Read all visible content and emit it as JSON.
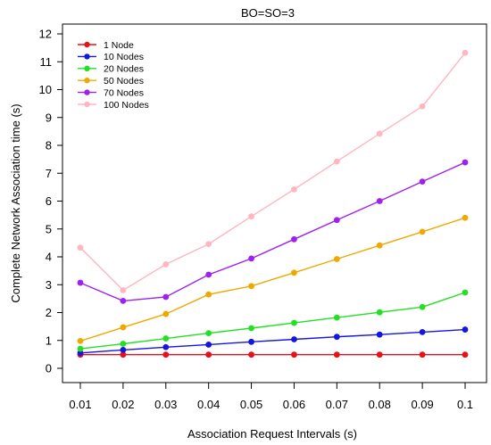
{
  "chart_data": {
    "type": "line",
    "title": "BO=SO=3",
    "xlabel": "Association Request Intervals (s)",
    "ylabel": "Complete Network Association time (s)",
    "x": [
      0.01,
      0.02,
      0.03,
      0.04,
      0.05,
      0.06,
      0.07,
      0.08,
      0.09,
      0.1
    ],
    "x_tick_labels": [
      "0.01",
      "0.02",
      "0.03",
      "0.04",
      "0.05",
      "0.06",
      "0.07",
      "0.08",
      "0.09",
      "0.1"
    ],
    "y_ticks": [
      0,
      1,
      2,
      3,
      4,
      5,
      6,
      7,
      8,
      9,
      10,
      11,
      12
    ],
    "y_tick_labels": [
      "0",
      "1",
      "2",
      "3",
      "4",
      "5",
      "6",
      "7",
      "8",
      "9",
      "10",
      "11",
      "12"
    ],
    "ylim": [
      0,
      12
    ],
    "grid": false,
    "legend_position": "top-left",
    "series": [
      {
        "name": "1 Node",
        "color": "#e8101a",
        "values": [
          0.49,
          0.49,
          0.49,
          0.49,
          0.49,
          0.49,
          0.49,
          0.49,
          0.49,
          0.49
        ]
      },
      {
        "name": "10 Nodes",
        "color": "#1515e0",
        "values": [
          0.55,
          0.66,
          0.76,
          0.85,
          0.95,
          1.04,
          1.13,
          1.21,
          1.3,
          1.39
        ]
      },
      {
        "name": "20 Nodes",
        "color": "#22e022",
        "values": [
          0.7,
          0.88,
          1.07,
          1.26,
          1.44,
          1.63,
          1.82,
          2.01,
          2.2,
          2.72
        ]
      },
      {
        "name": "50 Nodes",
        "color": "#f0a800",
        "values": [
          0.98,
          1.47,
          1.95,
          2.65,
          2.95,
          3.43,
          3.92,
          4.41,
          4.9,
          5.4
        ]
      },
      {
        "name": "70 Nodes",
        "color": "#a020f0",
        "values": [
          3.07,
          2.42,
          2.56,
          3.36,
          3.94,
          4.63,
          5.32,
          6.0,
          6.7,
          7.39
        ]
      },
      {
        "name": "100 Nodes",
        "color": "#ffb6c1",
        "values": [
          4.33,
          2.8,
          3.73,
          4.46,
          5.45,
          6.42,
          7.42,
          8.42,
          9.4,
          11.32
        ]
      }
    ]
  }
}
